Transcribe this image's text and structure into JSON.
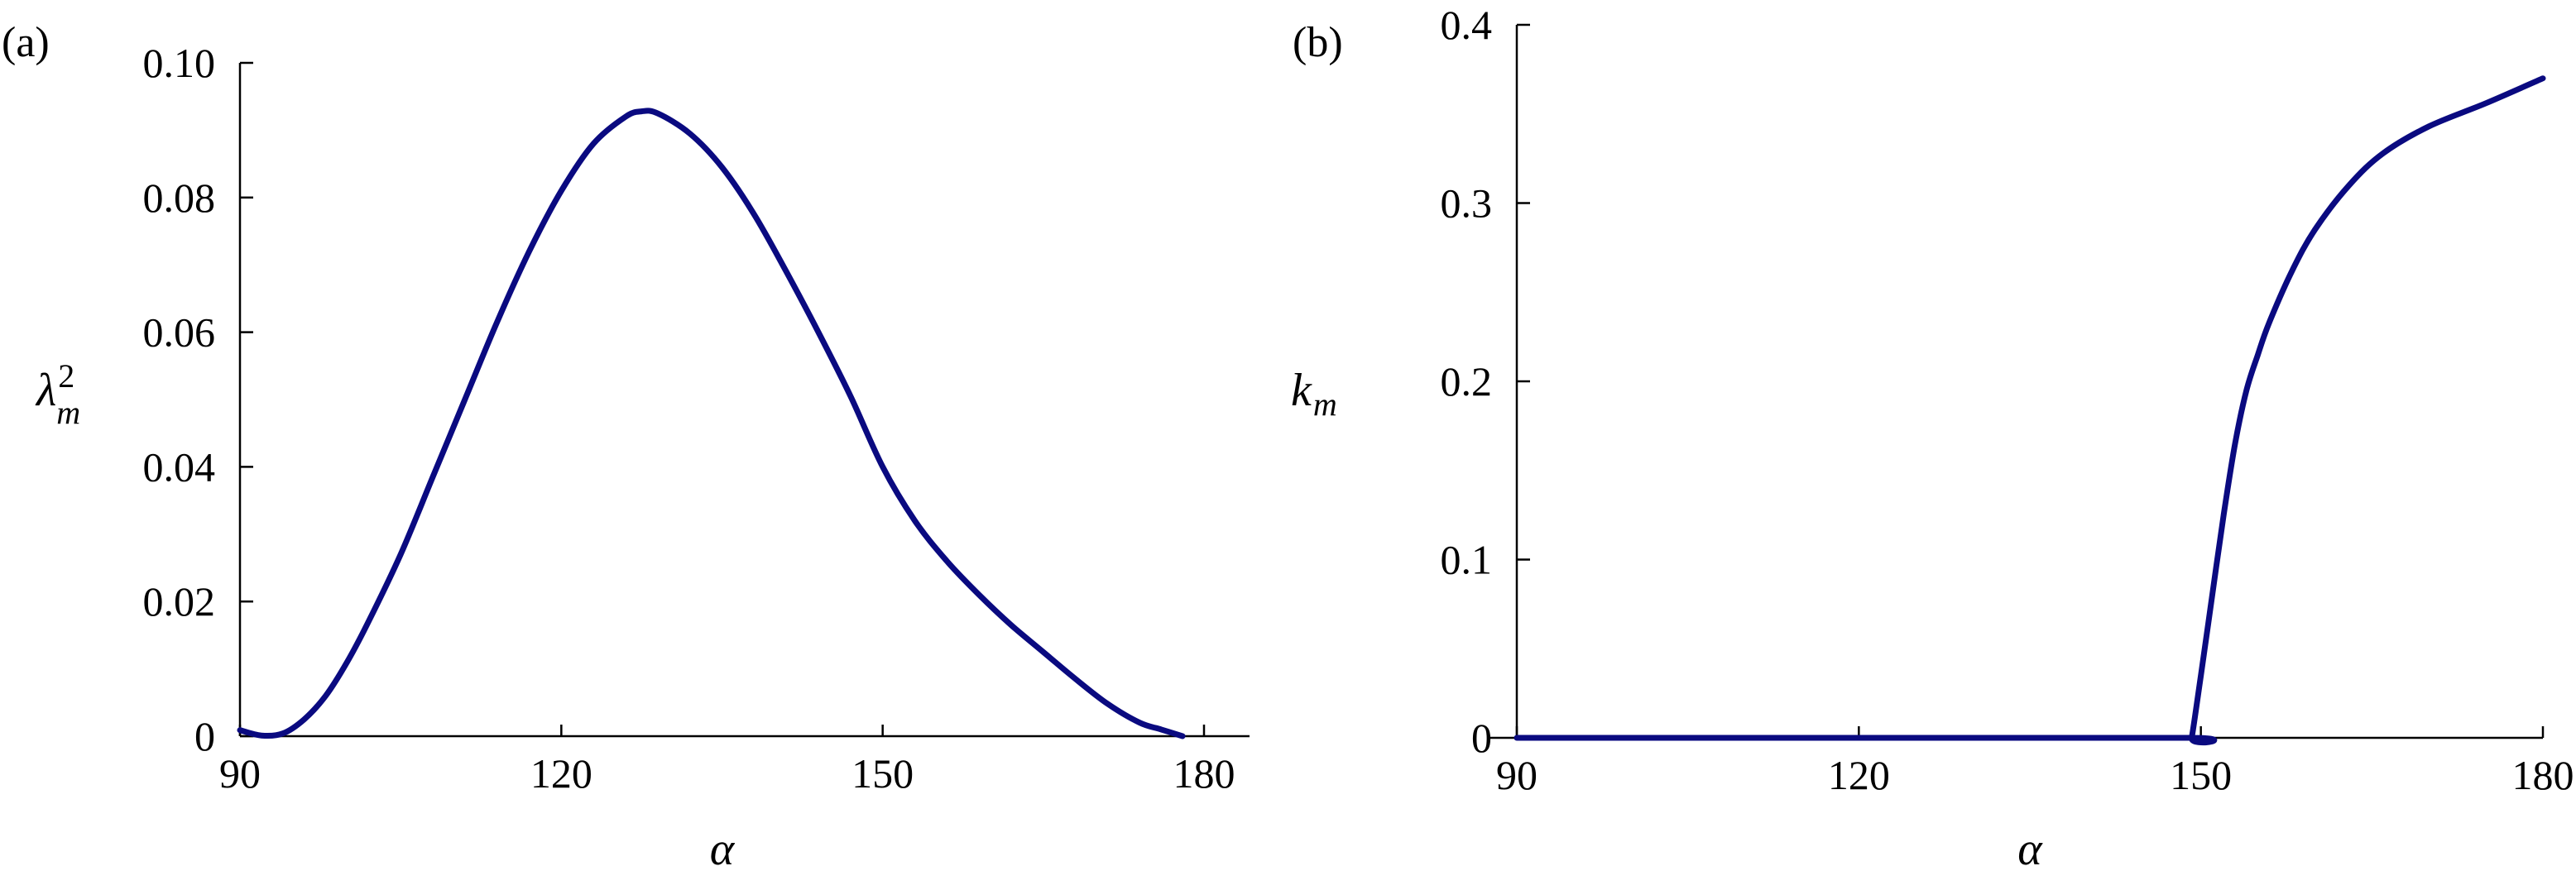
{
  "chart_data": [
    {
      "panel": "(a)",
      "type": "line",
      "xlabel": "α",
      "ylabel_main": "λ",
      "ylabel_sup": "2",
      "ylabel_sub": "m",
      "xlim": [
        90,
        180
      ],
      "ylim": [
        0,
        0.1
      ],
      "xticks": [
        90,
        120,
        150,
        180
      ],
      "xtick_labels": [
        "90",
        "120",
        "150",
        "180"
      ],
      "yticks": [
        0,
        0.02,
        0.04,
        0.06,
        0.08,
        0.1
      ],
      "ytick_labels": [
        "0",
        "0.02",
        "0.04",
        "0.06",
        "0.08",
        "0.10"
      ],
      "color": "#0a0a80",
      "series": [
        {
          "x": [
            90,
            92,
            94,
            96,
            98,
            100,
            102,
            105,
            108,
            111,
            114,
            117,
            120,
            123,
            126,
            127.5,
            129,
            132,
            135,
            138,
            141,
            144,
            147,
            150,
            153,
            156,
            159,
            162,
            165,
            168,
            171,
            174,
            176,
            178
          ],
          "y": [
            0.0009,
            0.0001,
            0.0004,
            0.0025,
            0.006,
            0.011,
            0.017,
            0.027,
            0.0385,
            0.05,
            0.0615,
            0.072,
            0.081,
            0.088,
            0.092,
            0.0928,
            0.0925,
            0.0895,
            0.0845,
            0.0775,
            0.069,
            0.06,
            0.0505,
            0.04,
            0.032,
            0.026,
            0.021,
            0.0165,
            0.0125,
            0.0085,
            0.0048,
            0.002,
            0.001,
            0.0
          ]
        }
      ]
    },
    {
      "panel": "(b)",
      "type": "line",
      "xlabel": "α",
      "ylabel_main": "k",
      "ylabel_sup": "",
      "ylabel_sub": "m",
      "xlim": [
        90,
        180
      ],
      "ylim": [
        0,
        0.4
      ],
      "xticks": [
        90,
        120,
        150,
        180
      ],
      "xtick_labels": [
        "90",
        "120",
        "150",
        "180"
      ],
      "yticks": [
        0,
        0.1,
        0.2,
        0.3,
        0.4
      ],
      "ytick_labels": [
        "0",
        "0.1",
        "0.2",
        "0.3",
        "0.4"
      ],
      "color": "#0a0a80",
      "series": [
        {
          "x": [
            90,
            120,
            149,
            149.2,
            150,
            151,
            152,
            153,
            154,
            155,
            156,
            158,
            160,
            163,
            166,
            170,
            175,
            180
          ],
          "y": [
            0,
            0,
            0,
            0,
            0.035,
            0.08,
            0.125,
            0.165,
            0.195,
            0.215,
            0.233,
            0.262,
            0.285,
            0.31,
            0.328,
            0.343,
            0.356,
            0.37
          ]
        }
      ]
    }
  ]
}
